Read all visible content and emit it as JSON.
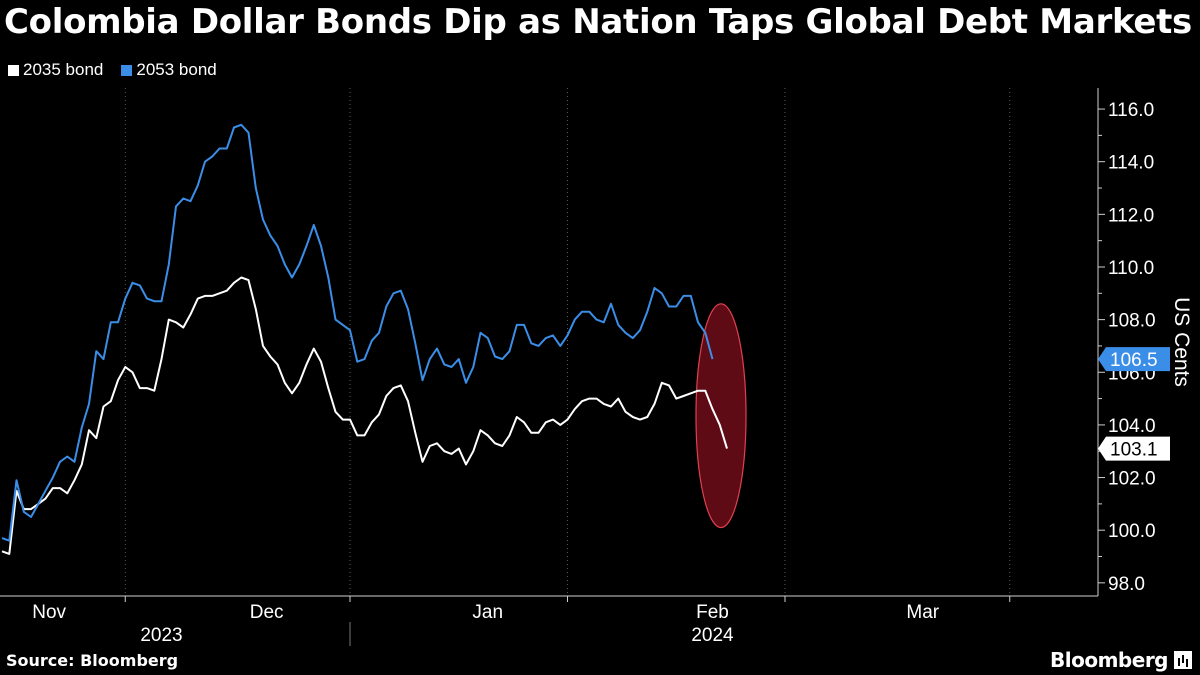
{
  "title": "Colombia Dollar Bonds Dip as Nation Taps Global Debt Markets",
  "source": "Source: Bloomberg",
  "brand": "Bloomberg",
  "colors": {
    "background": "#000000",
    "series_2035": "#ffffff",
    "series_2053": "#3b8ee8",
    "highlight": "#6e0d1a",
    "highlight_border": "#e0404f"
  },
  "chart_data": {
    "type": "line",
    "title": "Colombia Dollar Bonds Dip as Nation Taps Global Debt Markets",
    "ylabel": "US Cents",
    "xlabel": "",
    "ylim": [
      97.5,
      116.8
    ],
    "yticks": [
      98.0,
      100.0,
      102.0,
      104.0,
      106.0,
      108.0,
      110.0,
      112.0,
      114.0,
      116.0
    ],
    "ytick_labels": [
      "98.0",
      "100.0",
      "102.0",
      "104.0",
      "106.0",
      "108.0",
      "110.0",
      "112.0",
      "114.0",
      "116.0"
    ],
    "month_labels": [
      {
        "label": "Nov",
        "x": 6.5
      },
      {
        "label": "Dec",
        "x": 36.5
      },
      {
        "label": "Jan",
        "x": 67
      },
      {
        "label": "Feb",
        "x": 98
      },
      {
        "label": "Mar",
        "x": 127
      }
    ],
    "month_separators": [
      17,
      48,
      78,
      108,
      139
    ],
    "year_labels": [
      {
        "label": "2023",
        "x": 22
      },
      {
        "label": "2024",
        "x": 98
      }
    ],
    "year_separator": 48,
    "x_count": 149,
    "series": [
      {
        "name": "2035 bond",
        "last_label": "103.1",
        "values": [
          99.2,
          99.1,
          101.5,
          100.8,
          100.8,
          101.0,
          101.2,
          101.6,
          101.6,
          101.4,
          101.9,
          102.5,
          103.8,
          103.5,
          104.7,
          104.9,
          105.7,
          106.2,
          106.0,
          105.4,
          105.4,
          105.3,
          106.5,
          108.0,
          107.9,
          107.7,
          108.2,
          108.8,
          108.9,
          108.9,
          109.0,
          109.1,
          109.4,
          109.6,
          109.5,
          108.4,
          107.0,
          106.6,
          106.3,
          105.6,
          105.2,
          105.6,
          106.3,
          106.9,
          106.4,
          105.4,
          104.5,
          104.2,
          104.2,
          103.6,
          103.6,
          104.1,
          104.4,
          105.1,
          105.4,
          105.5,
          104.9,
          103.7,
          102.6,
          103.2,
          103.3,
          103.0,
          102.9,
          103.1,
          102.5,
          103.0,
          103.8,
          103.6,
          103.3,
          103.2,
          103.6,
          104.3,
          104.1,
          103.7,
          103.7,
          104.1,
          104.2,
          104.0,
          104.2,
          104.6,
          104.9,
          105.0,
          105.0,
          104.8,
          104.7,
          105.0,
          104.5,
          104.3,
          104.2,
          104.3,
          104.8,
          105.6,
          105.5,
          105.0,
          105.1,
          105.2,
          105.3,
          105.3,
          104.6,
          104.0,
          103.1
        ]
      },
      {
        "name": "2053 bond",
        "last_label": "106.5",
        "values": [
          99.7,
          99.6,
          101.9,
          100.7,
          100.5,
          101.0,
          101.5,
          102.0,
          102.6,
          102.8,
          102.6,
          103.9,
          104.8,
          106.8,
          106.5,
          107.9,
          107.9,
          108.8,
          109.4,
          109.3,
          108.8,
          108.7,
          108.7,
          110.1,
          112.3,
          112.6,
          112.5,
          113.1,
          114.0,
          114.2,
          114.5,
          114.5,
          115.3,
          115.4,
          115.1,
          113.0,
          111.8,
          111.2,
          110.8,
          110.1,
          109.6,
          110.1,
          110.8,
          111.6,
          110.8,
          109.6,
          108.0,
          107.8,
          107.6,
          106.4,
          106.5,
          107.2,
          107.5,
          108.5,
          109.0,
          109.1,
          108.4,
          107.1,
          105.7,
          106.5,
          106.9,
          106.3,
          106.2,
          106.5,
          105.6,
          106.2,
          107.5,
          107.3,
          106.6,
          106.5,
          106.8,
          107.8,
          107.8,
          107.1,
          107.0,
          107.3,
          107.4,
          107.0,
          107.4,
          108.0,
          108.3,
          108.3,
          108.0,
          107.9,
          108.6,
          107.8,
          107.5,
          107.3,
          107.6,
          108.3,
          109.2,
          109.0,
          108.5,
          108.5,
          108.9,
          108.9,
          107.9,
          107.5,
          106.5
        ]
      }
    ],
    "highlight": {
      "shape": "ellipse",
      "around": "final values"
    }
  }
}
